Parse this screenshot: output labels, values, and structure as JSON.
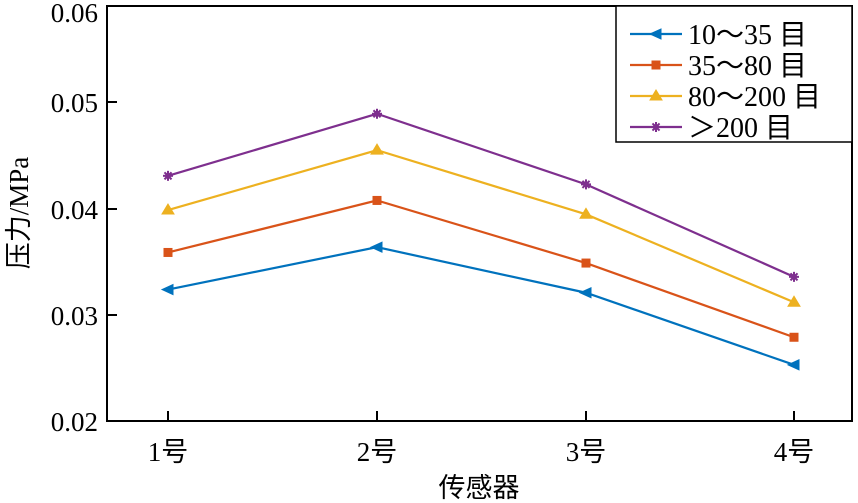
{
  "chart_data": {
    "type": "line",
    "title": "",
    "xlabel": "传感器",
    "ylabel": "压力/MPa",
    "categories": [
      "1号",
      "2号",
      "3号",
      "4号"
    ],
    "ylim": [
      0.02,
      0.06
    ],
    "yticks": [
      "0.02",
      "0.03",
      "0.04",
      "0.05",
      "0.06"
    ],
    "grid": false,
    "legend_position": "top-right",
    "series": [
      {
        "name": "10～35 目",
        "color": "#0072BD",
        "marker": "triangle-left",
        "values": [
          0.0324,
          0.0364,
          0.0321,
          0.0253
        ]
      },
      {
        "name": "35～80 目",
        "color": "#D95319",
        "marker": "square",
        "values": [
          0.0359,
          0.0408,
          0.0349,
          0.0279
        ]
      },
      {
        "name": "80～200 目",
        "color": "#EDB120",
        "marker": "triangle-up",
        "values": [
          0.0399,
          0.0455,
          0.0395,
          0.0312
        ]
      },
      {
        "name": "＞200 目",
        "color": "#7E2F8E",
        "marker": "asterisk",
        "values": [
          0.0431,
          0.0489,
          0.0423,
          0.0336
        ]
      }
    ]
  }
}
